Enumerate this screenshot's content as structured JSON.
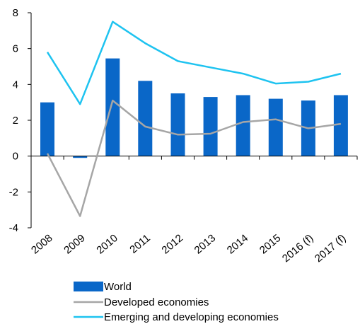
{
  "chart_data": {
    "type": "bar",
    "categories": [
      "2008",
      "2009",
      "2010",
      "2011",
      "2012",
      "2013",
      "2014",
      "2015",
      "2016 (f)",
      "2017 (f)"
    ],
    "ylim": [
      -4,
      8
    ],
    "yticks": [
      "8",
      "6",
      "4",
      "2",
      "0",
      "-2",
      "-4"
    ],
    "grid": false,
    "legend_placement": "bottom",
    "series": [
      {
        "name": "World",
        "kind": "bar",
        "color": "#0a67c8",
        "values": [
          3.0,
          -0.1,
          5.45,
          4.2,
          3.5,
          3.3,
          3.4,
          3.2,
          3.1,
          3.4
        ]
      },
      {
        "name": "Developed economies",
        "kind": "line",
        "color": "#a6a6a6",
        "values": [
          0.15,
          -3.35,
          3.1,
          1.65,
          1.2,
          1.25,
          1.9,
          2.05,
          1.55,
          1.8
        ]
      },
      {
        "name": "Emerging and developing economies",
        "kind": "line",
        "color": "#1ec3f0",
        "values": [
          5.8,
          2.9,
          7.5,
          6.3,
          5.3,
          4.95,
          4.6,
          4.05,
          4.15,
          4.6
        ]
      }
    ]
  }
}
